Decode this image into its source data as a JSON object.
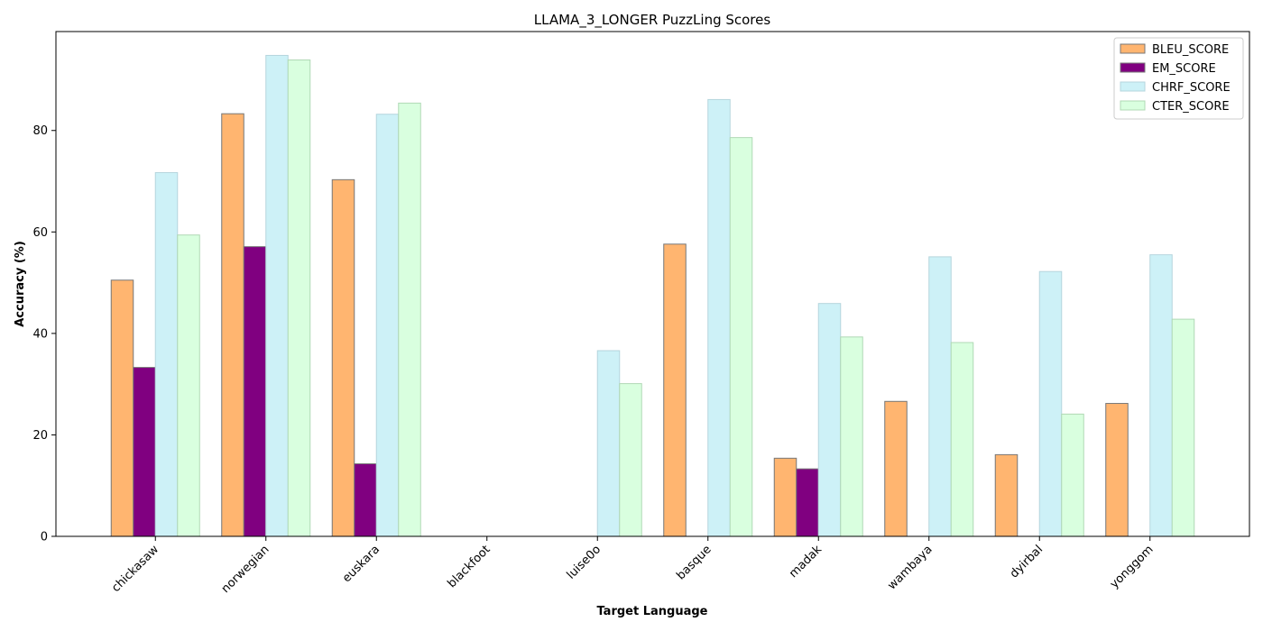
{
  "chart_data": {
    "type": "bar",
    "title": "LLAMA_3_LONGER PuzzLing Scores",
    "xlabel": "Target Language",
    "ylabel": "Accuracy (%)",
    "ylim": [
      0,
      99.5
    ],
    "yticks": [
      0,
      20,
      40,
      60,
      80
    ],
    "grid": false,
    "legend_position": "top-right",
    "categories": [
      "chickasaw",
      "norwegian",
      "euskara",
      "blackfoot",
      "luise0o",
      "basque",
      "madak",
      "wambaya",
      "dyirbal",
      "yonggom"
    ],
    "series": [
      {
        "name": "BLEU_SCORE",
        "color": "#FFB570",
        "edge": "#777777",
        "values": [
          50.5,
          83.3,
          70.3,
          0,
          0,
          57.6,
          15.4,
          26.6,
          16.1,
          26.2
        ]
      },
      {
        "name": "EM_SCORE",
        "color": "#800080",
        "edge": "#777777",
        "values": [
          33.3,
          57.1,
          14.3,
          0,
          0,
          0,
          13.3,
          0,
          0,
          0
        ]
      },
      {
        "name": "CHRF_SCORE",
        "color": "#CDF1F7",
        "edge": "#B5D5DD",
        "values": [
          71.7,
          94.8,
          83.2,
          0,
          36.6,
          86.1,
          45.9,
          55.1,
          52.2,
          55.5
        ]
      },
      {
        "name": "CTER_SCORE",
        "color": "#D9FFDF",
        "edge": "#B0D8B5",
        "values": [
          59.4,
          93.9,
          85.4,
          0,
          30.1,
          78.6,
          39.3,
          38.2,
          24.1,
          42.8
        ]
      }
    ]
  }
}
